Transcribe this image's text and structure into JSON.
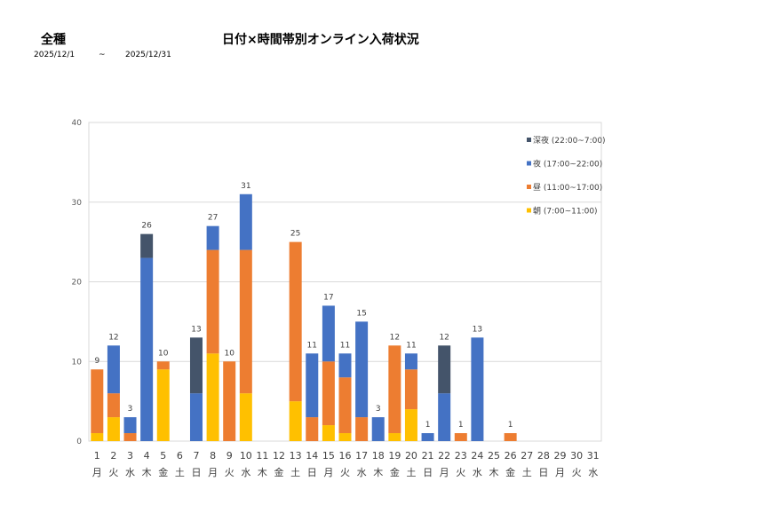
{
  "header": {
    "category": "全種",
    "title": "日付×時間帯別オンライン入荷状況",
    "date_from": "2025/12/1",
    "tilde": "~",
    "date_to": "2025/12/31"
  },
  "chart_data": {
    "type": "bar",
    "stacked": true,
    "title": "日付×時間帯別オンライン入荷状況",
    "ylim": [
      0,
      40
    ],
    "yticks": [
      0,
      10,
      20,
      30,
      40
    ],
    "grid": true,
    "legend": "top-right",
    "categories": [
      "1",
      "2",
      "3",
      "4",
      "5",
      "6",
      "7",
      "8",
      "9",
      "10",
      "11",
      "12",
      "13",
      "14",
      "15",
      "16",
      "17",
      "18",
      "19",
      "20",
      "21",
      "22",
      "23",
      "24",
      "25",
      "26",
      "27",
      "28",
      "29",
      "30",
      "31"
    ],
    "weekdays": [
      "月",
      "火",
      "水",
      "木",
      "金",
      "土",
      "日",
      "月",
      "火",
      "水",
      "木",
      "金",
      "土",
      "日",
      "月",
      "火",
      "水",
      "木",
      "金",
      "土",
      "日",
      "月",
      "火",
      "水",
      "木",
      "金",
      "土",
      "日",
      "月",
      "火",
      "水"
    ],
    "series": [
      {
        "name": "朝 (7:00~11:00)",
        "color": "#FFC000",
        "values": [
          1,
          3,
          0,
          0,
          9,
          0,
          0,
          11,
          0,
          6,
          0,
          0,
          5,
          0,
          2,
          1,
          0,
          0,
          1,
          4,
          0,
          0,
          0,
          0,
          0,
          0,
          0,
          0,
          0,
          0,
          0
        ]
      },
      {
        "name": "昼 (11:00~17:00)",
        "color": "#ED7D31",
        "values": [
          8,
          3,
          1,
          0,
          1,
          0,
          0,
          13,
          10,
          18,
          0,
          0,
          20,
          3,
          8,
          7,
          3,
          0,
          11,
          5,
          0,
          0,
          1,
          0,
          0,
          1,
          0,
          0,
          0,
          0,
          0
        ]
      },
      {
        "name": "夜 (17:00~22:00)",
        "color": "#4472C4",
        "values": [
          0,
          6,
          2,
          23,
          0,
          0,
          6,
          3,
          0,
          7,
          0,
          0,
          0,
          8,
          7,
          3,
          12,
          3,
          0,
          2,
          1,
          6,
          0,
          13,
          0,
          0,
          0,
          0,
          0,
          0,
          0
        ]
      },
      {
        "name": "深夜 (22:00~7:00)",
        "color": "#44546A",
        "values": [
          0,
          0,
          0,
          3,
          0,
          0,
          7,
          0,
          0,
          0,
          0,
          0,
          0,
          0,
          0,
          0,
          0,
          0,
          0,
          0,
          0,
          6,
          0,
          0,
          0,
          0,
          0,
          0,
          0,
          0,
          0
        ]
      }
    ],
    "totals": [
      9,
      12,
      3,
      26,
      10,
      0,
      13,
      27,
      10,
      31,
      0,
      0,
      25,
      11,
      17,
      11,
      15,
      3,
      12,
      11,
      1,
      12,
      1,
      13,
      0,
      1,
      0,
      0,
      0,
      0,
      0
    ]
  }
}
